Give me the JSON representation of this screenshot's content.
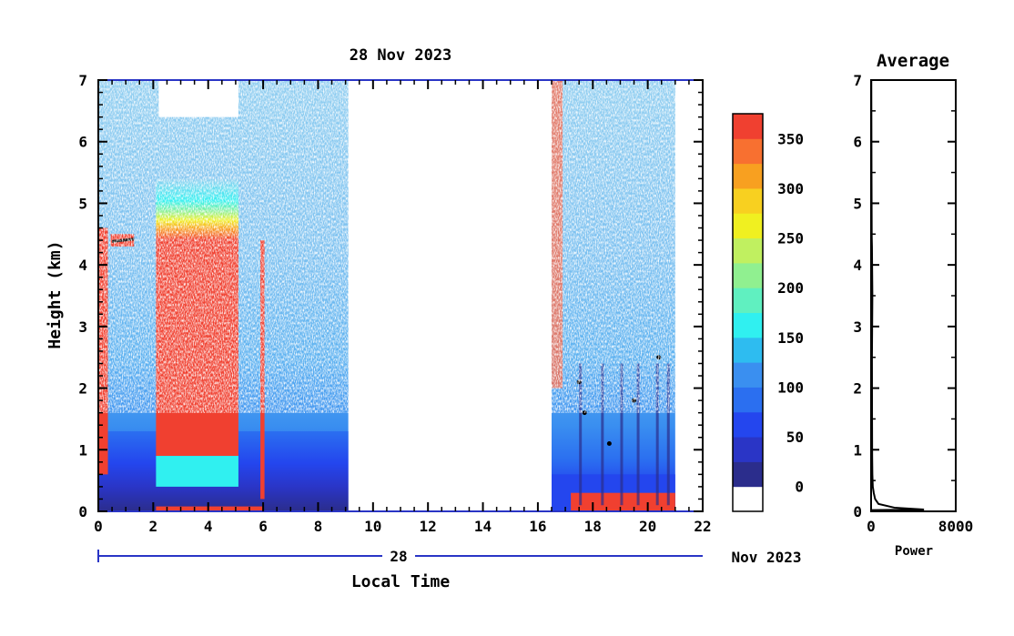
{
  "chart_data": [
    {
      "type": "heatmap",
      "title": "28 Nov 2023",
      "xlabel": "Local Time",
      "ylabel": "Height (km)",
      "xlim": [
        0,
        22
      ],
      "ylim": [
        0,
        7
      ],
      "x_ticks": [
        "0",
        "2",
        "4",
        "6",
        "8",
        "10",
        "12",
        "14",
        "16",
        "18",
        "20",
        "22"
      ],
      "y_ticks": [
        "0",
        "1",
        "2",
        "3",
        "4",
        "5",
        "6",
        "7"
      ],
      "date_axis": {
        "day_label": "28",
        "month_label": "Nov 2023"
      },
      "colorbar": {
        "ticks": [
          "0",
          "50",
          "100",
          "150",
          "200",
          "250",
          "300",
          "350"
        ],
        "levels": [
          0,
          375
        ],
        "colors": [
          "#ffffff",
          "#2b2d8c",
          "#2a35c6",
          "#2446ee",
          "#2b6ff0",
          "#3a8ff0",
          "#2ebcf0",
          "#30f0f0",
          "#60f0c0",
          "#90f090",
          "#c0f060",
          "#f0f020",
          "#f8d020",
          "#f8a020",
          "#f87030",
          "#f04030"
        ]
      },
      "data_regions": [
        {
          "start": 0.0,
          "end": 9.1,
          "description": "observed"
        },
        {
          "start": 16.5,
          "end": 21.0,
          "description": "observed"
        }
      ]
    },
    {
      "type": "line",
      "title": "Average",
      "xlabel": "Power",
      "xlim": [
        0,
        8000
      ],
      "ylim": [
        0,
        7
      ],
      "x_ticks": [
        "0",
        "8000"
      ],
      "y_ticks": [
        "0",
        "1",
        "2",
        "3",
        "4",
        "5",
        "6",
        "7"
      ],
      "series": [
        {
          "x": [
            0,
            5000,
            2200,
            700,
            380,
            250,
            160,
            120,
            100,
            90,
            80,
            120,
            80,
            60,
            40,
            20
          ],
          "y": [
            0.02,
            0.03,
            0.06,
            0.12,
            0.2,
            0.3,
            0.4,
            0.6,
            0.9,
            1.5,
            2.5,
            3.5,
            4.3,
            4.45,
            5.5,
            7.0
          ]
        }
      ]
    }
  ]
}
